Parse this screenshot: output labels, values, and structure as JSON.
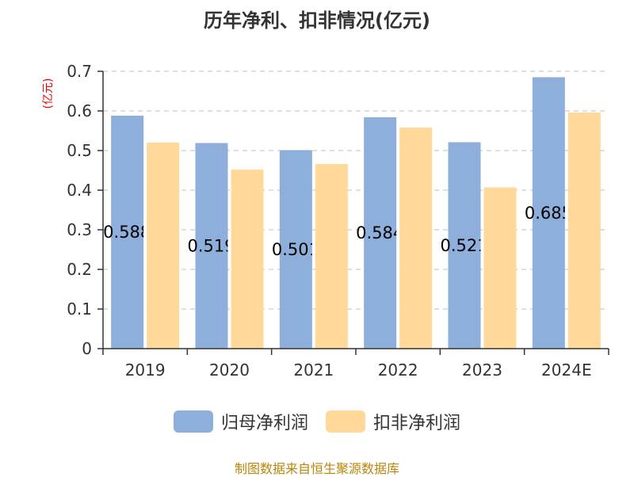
{
  "title": "历年净利、扣非情况(亿元)",
  "unit_label": "(亿元)",
  "source": "制图数据来自恒生聚源数据库",
  "colors": {
    "series1": "#8eaedb",
    "series2": "#ffd89a",
    "axis": "#333333",
    "grid": "#cccccc",
    "unit": "#e60000",
    "source": "#b8860b"
  },
  "chart_data": {
    "type": "bar",
    "title": "历年净利、扣非情况(亿元)",
    "ylabel": "(亿元)",
    "categories": [
      "2019",
      "2020",
      "2021",
      "2022",
      "2023",
      "2024E"
    ],
    "ylim": [
      0,
      0.7
    ],
    "yticks": [
      0,
      0.1,
      0.2,
      0.3,
      0.4,
      0.5,
      0.6,
      0.7
    ],
    "grid": true,
    "legend_position": "bottom",
    "series": [
      {
        "name": "归母净利润",
        "values": [
          0.588,
          0.519,
          0.501,
          0.584,
          0.521,
          0.685
        ],
        "data_labels": [
          "0.588",
          "0.519",
          "0.501",
          "0.584",
          "0.521",
          "0.685"
        ]
      },
      {
        "name": "扣非净利润",
        "values": [
          0.52,
          0.452,
          0.466,
          0.558,
          0.407,
          0.596
        ]
      }
    ]
  }
}
